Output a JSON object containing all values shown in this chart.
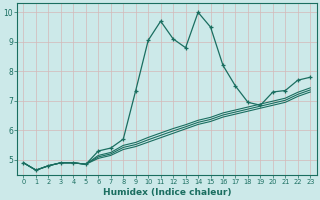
{
  "xlabel": "Humidex (Indice chaleur)",
  "ylabel": "",
  "bg_color": "#cce9e9",
  "line_color": "#1a6e60",
  "grid_color": "#d4b8b8",
  "xlim": [
    -0.5,
    23.5
  ],
  "ylim": [
    4.5,
    10.3
  ],
  "xticks": [
    0,
    1,
    2,
    3,
    4,
    5,
    6,
    7,
    8,
    9,
    10,
    11,
    12,
    13,
    14,
    15,
    16,
    17,
    18,
    19,
    20,
    21,
    22,
    23
  ],
  "yticks": [
    5,
    6,
    7,
    8,
    9,
    10
  ],
  "main_x": [
    0,
    1,
    2,
    3,
    4,
    5,
    6,
    7,
    8,
    9,
    10,
    11,
    12,
    13,
    14,
    15,
    16,
    17,
    18,
    19,
    20,
    21,
    22,
    23
  ],
  "main_y": [
    4.9,
    4.65,
    4.8,
    4.9,
    4.9,
    4.85,
    5.3,
    5.4,
    5.7,
    7.35,
    9.05,
    9.7,
    9.1,
    8.8,
    10.0,
    9.5,
    8.2,
    7.5,
    6.95,
    6.85,
    7.3,
    7.35,
    7.7,
    7.8
  ],
  "low_x": [
    0,
    1,
    2,
    3,
    4,
    5,
    6,
    7,
    8,
    9,
    10,
    11,
    12,
    13,
    14,
    15,
    16,
    17,
    18,
    19,
    20,
    21,
    22,
    23
  ],
  "low_y": [
    4.9,
    4.65,
    4.8,
    4.9,
    4.9,
    4.85,
    5.05,
    5.15,
    5.35,
    5.45,
    5.6,
    5.75,
    5.9,
    6.05,
    6.2,
    6.3,
    6.45,
    6.55,
    6.65,
    6.75,
    6.85,
    6.95,
    7.15,
    7.3
  ],
  "mid_y": [
    4.9,
    4.65,
    4.8,
    4.9,
    4.9,
    4.85,
    5.1,
    5.2,
    5.42,
    5.52,
    5.68,
    5.83,
    5.98,
    6.12,
    6.27,
    6.37,
    6.52,
    6.62,
    6.72,
    6.82,
    6.92,
    7.02,
    7.22,
    7.37
  ],
  "hi_y": [
    4.9,
    4.65,
    4.8,
    4.9,
    4.9,
    4.85,
    5.15,
    5.25,
    5.49,
    5.59,
    5.76,
    5.91,
    6.06,
    6.19,
    6.34,
    6.44,
    6.59,
    6.69,
    6.79,
    6.89,
    6.99,
    7.09,
    7.29,
    7.44
  ]
}
